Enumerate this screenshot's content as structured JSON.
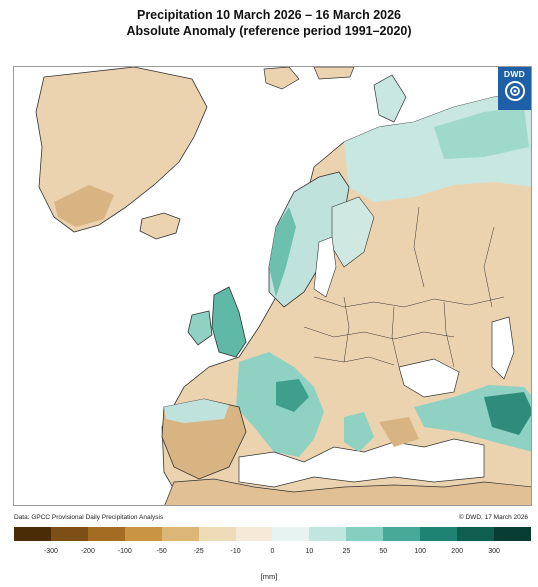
{
  "title": {
    "line1": "Precipitation 10 March 2026 – 16 March 2026",
    "line2": "Absolute Anomaly (reference period 1991–2020)"
  },
  "logo": {
    "text": "DWD",
    "icon": "dwd-spiral-icon"
  },
  "credits": {
    "left": "Data: GPCC Provisional Daily Precipitation Analysis",
    "right": "© DWD, 17 March 2026"
  },
  "legend": {
    "unit": "[mm]",
    "ticks": [
      "-300",
      "-200",
      "-100",
      "-50",
      "-25",
      "-10",
      "0",
      "10",
      "25",
      "50",
      "100",
      "200",
      "300"
    ],
    "colors": [
      "#4a2d07",
      "#7d4e15",
      "#a46c22",
      "#c89542",
      "#dcb677",
      "#eedbb8",
      "#f4ead7",
      "#e6f3f0",
      "#c0e6df",
      "#86cfc0",
      "#47aa98",
      "#1e8373",
      "#0f5e50",
      "#083d33"
    ]
  }
}
